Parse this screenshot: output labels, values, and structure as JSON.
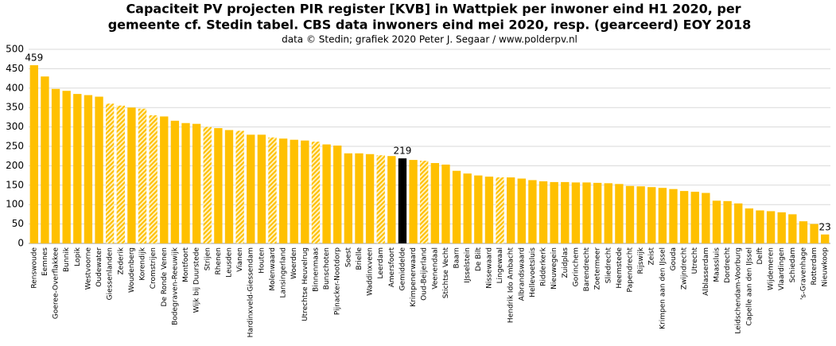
{
  "chart_data": {
    "type": "bar",
    "title": [
      "Capaciteit PV projecten PIR register [KVB] in Wattpiek per inwoner eind H1 2020, per",
      "gemeente cf. Stedin tabel. CBS data inwoners eind mei 2020, resp. (gearceerd) EOY 2018"
    ],
    "subtitle": "data © Stedin; grafiek 2020 Peter J. Segaar / www.polderpv.nl",
    "categories": [
      "Renswoude",
      "Eemnes",
      "Goeree-Overflakkee",
      "Bunnik",
      "Lopik",
      "Westvoorne",
      "Oudewater",
      "Giessenlanden",
      "Zederik",
      "Woudenberg",
      "Korendijk",
      "Cromstrijen",
      "De Ronde Venen",
      "Bodegraven-Reeuwijk",
      "Montfoort",
      "Wijk bij Duurstede",
      "Strijen",
      "Rhenen",
      "Leusden",
      "Vianen",
      "Hardinxveld-Giessendam",
      "Houten",
      "Molenwaard",
      "Lansingerland",
      "Woerden",
      "Utrechtse Heuvelrug",
      "Binnenmaas",
      "Bunschoten",
      "Pijnacker-Nootdorp",
      "Soest",
      "Brielle",
      "Waddinxveen",
      "Leerdam",
      "Amersfoort",
      "Gemiddelde",
      "Krimpenerwaard",
      "Oud-Beijerland",
      "Veenendaal",
      "Stichtse Vecht",
      "Baarn",
      "IJsselstein",
      "De Bilt",
      "Nissewaard",
      "Lingewaal",
      "Hendrik Ido Ambacht",
      "Albrandswaard",
      "Hellevoetsluis",
      "Ridderkerk",
      "Nieuwegein",
      "Zuidplas",
      "Gorinchem",
      "Barendrecht",
      "Zoetermeer",
      "Sliedrecht",
      "Heemstede",
      "Papendrecht",
      "Rijswijk",
      "Zeist",
      "Krimpen aan den IJssel",
      "Gouda",
      "Zwijndrecht",
      "Utrecht",
      "Alblasserdam",
      "Maassluis",
      "Dordrecht",
      "Leidschendam-Voorburg",
      "Capelle aan den IJssel",
      "Delft",
      "Wijdemeren",
      "Vlaardingen",
      "Schiedam",
      "'s-Gravenhage",
      "Rotterdam",
      "Nieuwkoop"
    ],
    "values": [
      459,
      430,
      398,
      393,
      385,
      382,
      378,
      360,
      355,
      350,
      347,
      330,
      327,
      316,
      310,
      308,
      300,
      297,
      292,
      290,
      280,
      280,
      273,
      270,
      267,
      265,
      262,
      255,
      252,
      232,
      232,
      230,
      227,
      225,
      219,
      215,
      213,
      207,
      203,
      187,
      180,
      175,
      172,
      170,
      170,
      167,
      163,
      160,
      158,
      158,
      157,
      157,
      156,
      155,
      153,
      148,
      147,
      145,
      143,
      140,
      135,
      133,
      130,
      110,
      109,
      103,
      90,
      85,
      83,
      80,
      75,
      57,
      50,
      23
    ],
    "value_labels": [
      459,
      null,
      null,
      null,
      null,
      null,
      null,
      null,
      null,
      null,
      null,
      null,
      null,
      null,
      null,
      null,
      null,
      null,
      null,
      null,
      null,
      null,
      null,
      null,
      null,
      null,
      null,
      null,
      null,
      null,
      null,
      null,
      null,
      null,
      219,
      null,
      null,
      null,
      null,
      null,
      null,
      null,
      null,
      null,
      null,
      null,
      null,
      null,
      null,
      null,
      null,
      null,
      null,
      null,
      null,
      null,
      null,
      null,
      null,
      null,
      null,
      null,
      null,
      null,
      null,
      null,
      null,
      null,
      null,
      null,
      null,
      null,
      null,
      23
    ],
    "color": "#ffc000",
    "highlight_color": "#000000",
    "highlight": [
      34
    ],
    "hatched": [
      7,
      8,
      10,
      11,
      16,
      19,
      22,
      26,
      32,
      36,
      43
    ],
    "ylim": [
      0,
      500
    ],
    "yticks": [
      0,
      50,
      100,
      150,
      200,
      250,
      300,
      350,
      400,
      450,
      500
    ],
    "grid": true
  }
}
